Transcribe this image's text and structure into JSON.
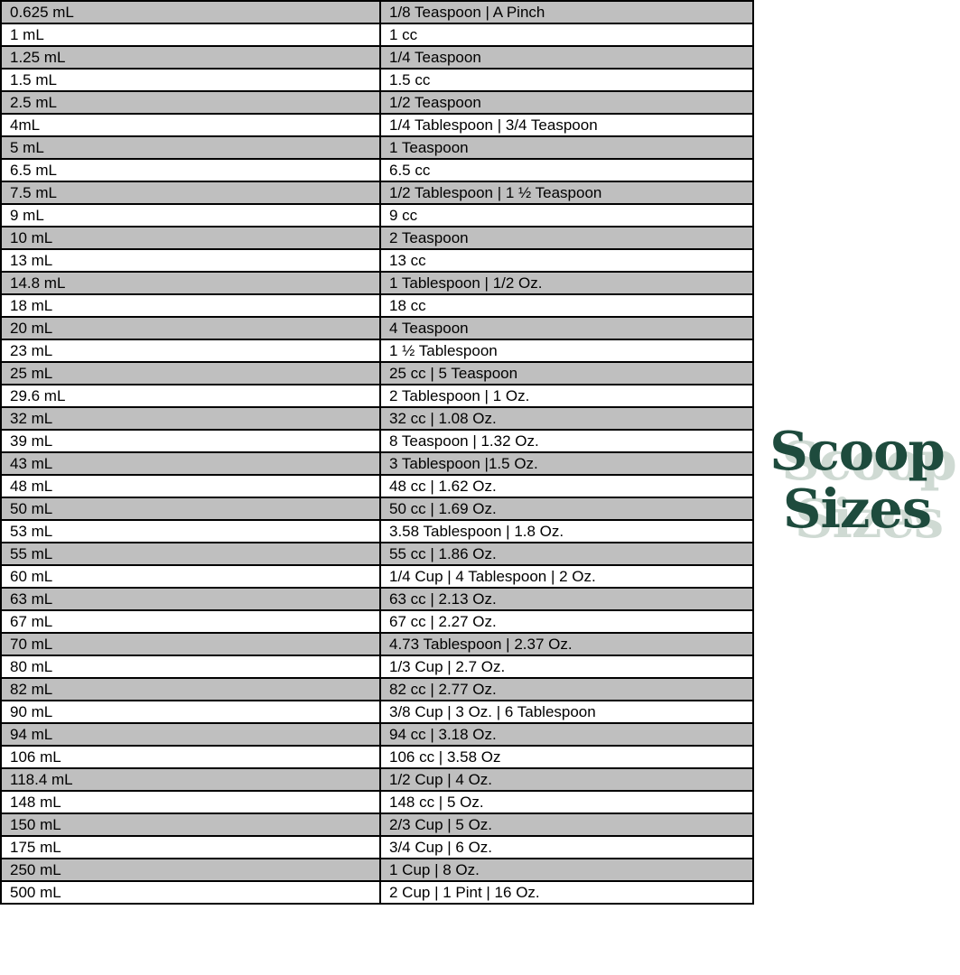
{
  "page": {
    "background": "#ffffff"
  },
  "logo": {
    "line1": "Scoop",
    "line2": "Sizes",
    "text_color": "#1e4b3d",
    "shadow_color": "#cfdad3"
  },
  "table_style": {
    "alt_row_background": "#bfbfbf",
    "border_color": "#000000",
    "text_color": "#000000"
  },
  "chart_data": {
    "type": "table",
    "title": "Scoop Sizes",
    "has_header_row": false,
    "column_semantics": [
      "milliliters",
      "equivalent"
    ],
    "rows": [
      [
        "0.625 mL",
        "1/8 Teaspoon | A Pinch"
      ],
      [
        "1 mL",
        "1 cc"
      ],
      [
        "1.25 mL",
        "1/4 Teaspoon"
      ],
      [
        "1.5 mL",
        "1.5 cc"
      ],
      [
        "2.5 mL",
        "1/2 Teaspoon"
      ],
      [
        "4mL",
        "1/4 Tablespoon | 3/4 Teaspoon"
      ],
      [
        "5 mL",
        "1 Teaspoon"
      ],
      [
        "6.5 mL",
        "6.5 cc"
      ],
      [
        "7.5 mL",
        "1/2 Tablespoon | 1 ½ Teaspoon"
      ],
      [
        "9 mL",
        "9 cc"
      ],
      [
        "10 mL",
        "2 Teaspoon"
      ],
      [
        "13 mL",
        "13 cc"
      ],
      [
        "14.8 mL",
        "1 Tablespoon | 1/2 Oz."
      ],
      [
        "18 mL",
        "18 cc"
      ],
      [
        "20 mL",
        "4 Teaspoon"
      ],
      [
        "23 mL",
        "1 ½ Tablespoon"
      ],
      [
        "25 mL",
        "25 cc | 5 Teaspoon"
      ],
      [
        "29.6 mL",
        "2 Tablespoon | 1 Oz."
      ],
      [
        "32 mL",
        "32 cc | 1.08 Oz."
      ],
      [
        "39 mL",
        "8 Teaspoon | 1.32 Oz."
      ],
      [
        "43 mL",
        "3 Tablespoon |1.5 Oz."
      ],
      [
        "48 mL",
        "48 cc | 1.62 Oz."
      ],
      [
        "50 mL",
        "50 cc | 1.69 Oz."
      ],
      [
        "53 mL",
        "3.58 Tablespoon | 1.8 Oz."
      ],
      [
        "55 mL",
        "55 cc | 1.86 Oz."
      ],
      [
        "60 mL",
        "1/4 Cup | 4 Tablespoon | 2 Oz."
      ],
      [
        "63 mL",
        "63 cc | 2.13 Oz."
      ],
      [
        "67 mL",
        "67 cc | 2.27 Oz."
      ],
      [
        "70 mL",
        "4.73 Tablespoon | 2.37 Oz."
      ],
      [
        "80 mL",
        "1/3 Cup | 2.7 Oz."
      ],
      [
        "82 mL",
        "82 cc | 2.77 Oz."
      ],
      [
        "90 mL",
        "3/8 Cup | 3 Oz. | 6 Tablespoon"
      ],
      [
        "94 mL",
        "94 cc | 3.18 Oz."
      ],
      [
        "106 mL",
        "106 cc | 3.58 Oz"
      ],
      [
        "118.4 mL",
        "1/2 Cup | 4 Oz."
      ],
      [
        "148 mL",
        "148 cc | 5 Oz."
      ],
      [
        "150 mL",
        "2/3 Cup | 5 Oz."
      ],
      [
        "175 mL",
        "3/4 Cup | 6 Oz."
      ],
      [
        "250 mL",
        "1 Cup | 8 Oz."
      ],
      [
        "500 mL",
        "2 Cup | 1 Pint | 16 Oz."
      ]
    ]
  }
}
